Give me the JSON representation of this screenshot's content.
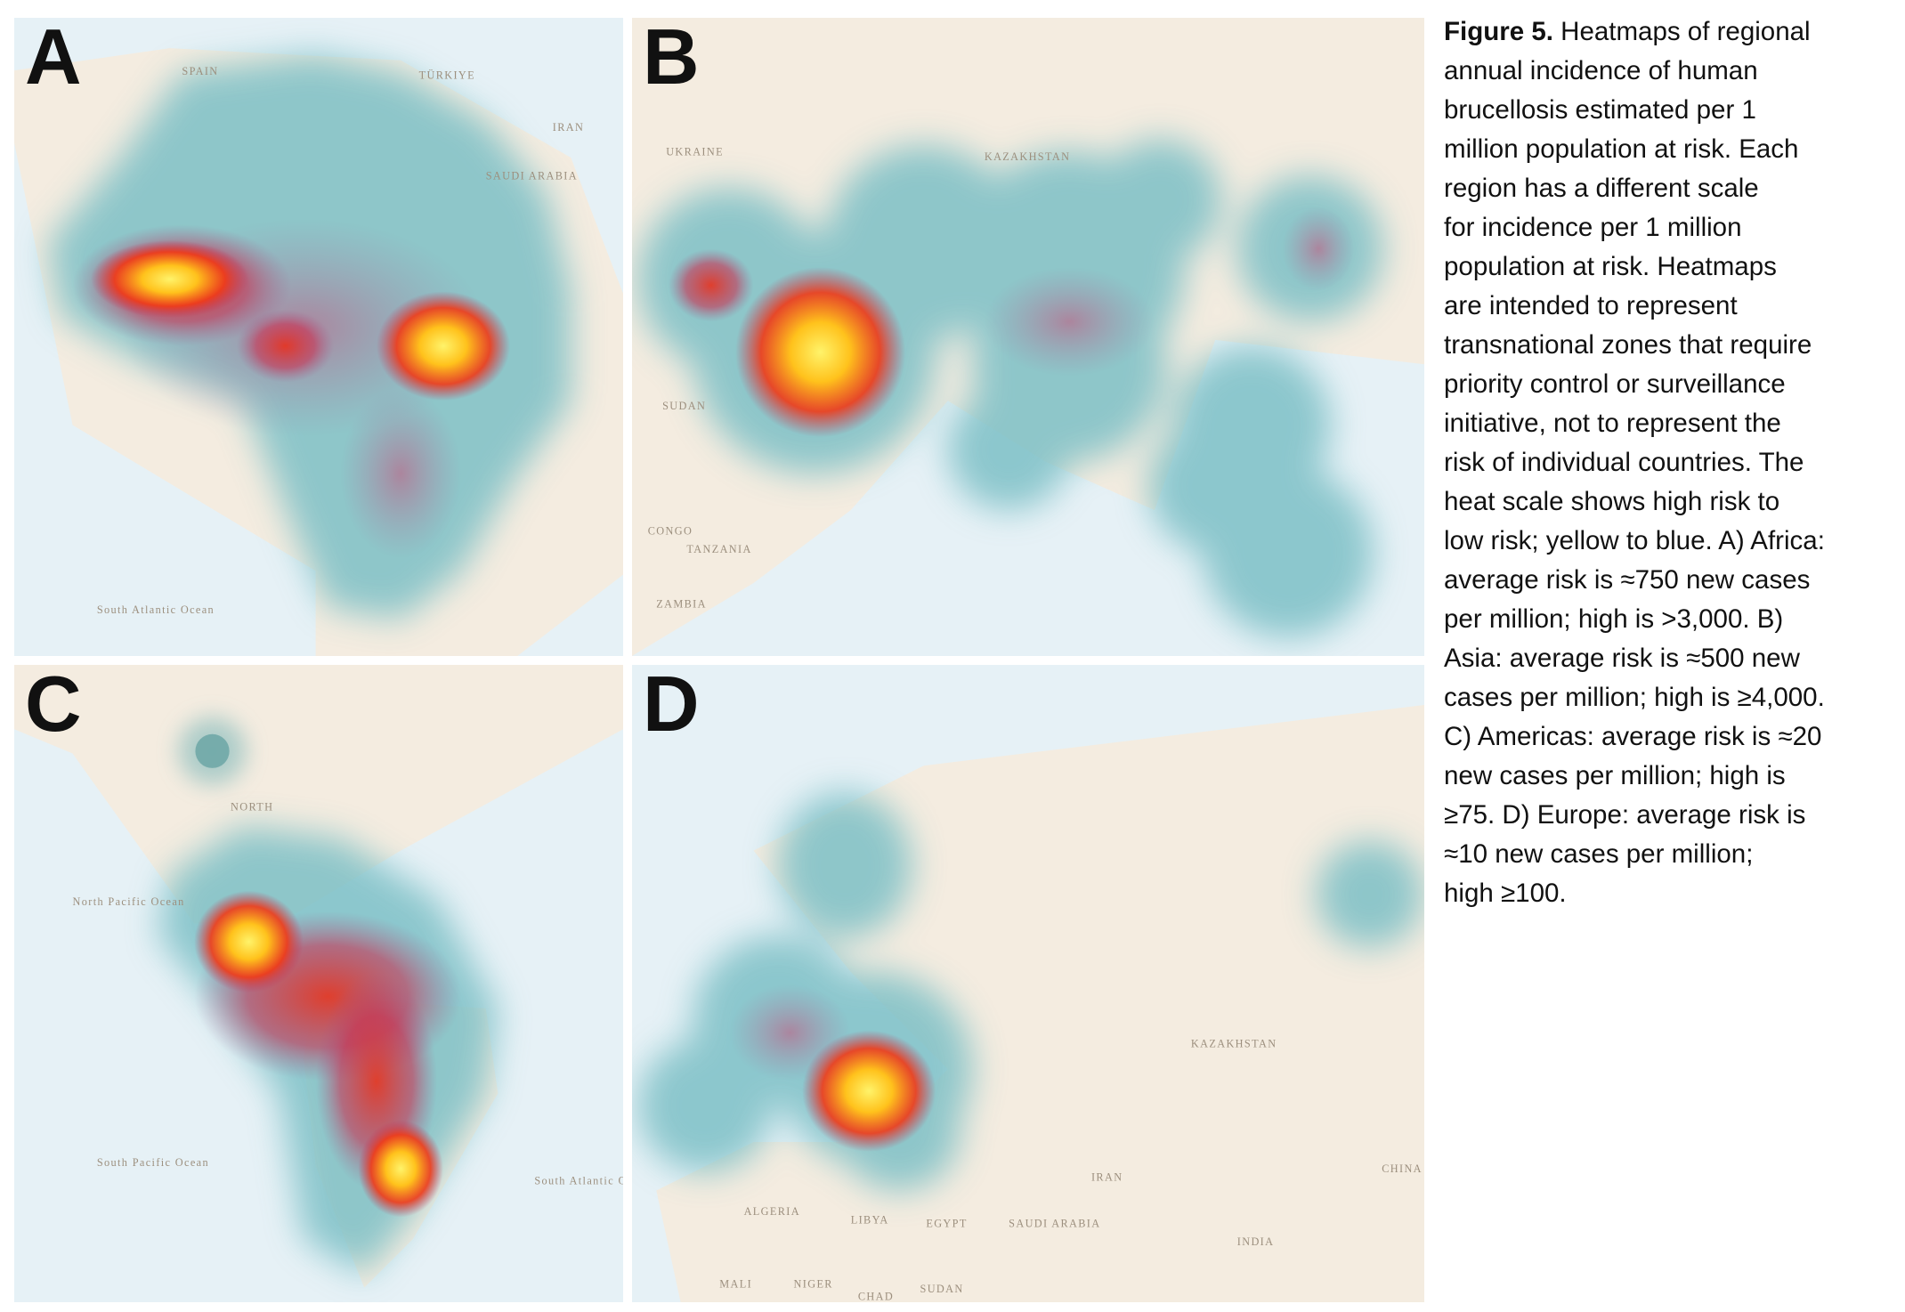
{
  "panels": [
    {
      "letter": "A",
      "places": [
        "SPAIN",
        "TÜRKIYE",
        "IRAN",
        "SAUDI ARABIA",
        "South Atlantic Ocean"
      ]
    },
    {
      "letter": "B",
      "places": [
        "UKRAINE",
        "KAZAKHSTAN",
        "SUDAN",
        "CONGO",
        "TANZANIA",
        "ZAMBIA"
      ]
    },
    {
      "letter": "C",
      "places": [
        "NORTH",
        "North Pacific Ocean",
        "South Atlantic Ocean",
        "South Pacific Ocean"
      ]
    },
    {
      "letter": "D",
      "places": [
        "KAZAKHSTAN",
        "ALGERIA",
        "LIBYA",
        "EGYPT",
        "SAUDI ARABIA",
        "IRAN",
        "INDIA",
        "MALI",
        "NIGER",
        "CHAD",
        "SUDAN",
        "CHINA"
      ]
    }
  ],
  "caption": {
    "label": "Figure 5.",
    "lines": [
      "Heatmaps of regional",
      "annual incidence of human",
      "brucellosis estimated per 1",
      "million population at risk. Each",
      "region has a different scale",
      "for incidence per 1 million",
      "population at risk. Heatmaps",
      "are intended to represent",
      "transnational zones that require",
      "priority control or surveillance",
      "initiative, not to represent the",
      "risk of individual countries. The",
      "heat scale shows high risk to",
      "low risk; yellow to blue. A) Africa:",
      "average risk is ≈750 new cases",
      "per million; high is >3,000. B)",
      "Asia: average risk is ≈500 new",
      "cases per million; high is ≥4,000.",
      "C) Americas: average risk is ≈20",
      "new cases per million; high is",
      "≥75. D) Europe: average risk is",
      "≈10 new cases per million;",
      "high ≥100."
    ]
  }
}
